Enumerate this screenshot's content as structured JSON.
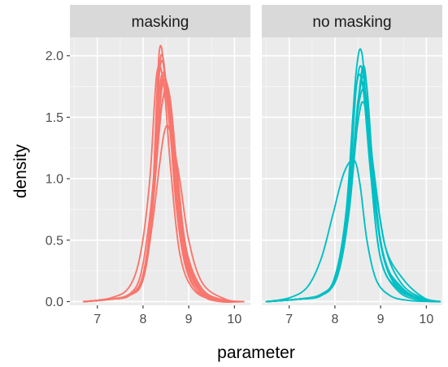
{
  "chart_data": {
    "type": "line",
    "chart_kind": "faceted density lines",
    "xlabel": "parameter",
    "ylabel": "density",
    "xlim": [
      6.4,
      10.35
    ],
    "ylim": [
      -0.03,
      2.15
    ],
    "x_ticks": [
      7,
      8,
      9,
      10
    ],
    "y_ticks": [
      0.0,
      0.5,
      1.0,
      1.5,
      2.0
    ],
    "y_tick_labels": [
      "0.0",
      "0.5",
      "1.0",
      "1.5",
      "2.0"
    ],
    "grid": true,
    "facets": [
      {
        "label": "masking",
        "color": "#F8766D",
        "series": [
          {
            "x": [
              6.7,
              7.3,
              7.7,
              7.95,
              8.15,
              8.35,
              8.55,
              8.75,
              8.95,
              9.3,
              9.8,
              10.2
            ],
            "y": [
              0.0,
              0.02,
              0.06,
              0.22,
              0.7,
              1.45,
              1.72,
              1.05,
              0.38,
              0.08,
              0.01,
              0.0
            ]
          },
          {
            "x": [
              6.7,
              7.3,
              7.7,
              7.95,
              8.15,
              8.3,
              8.45,
              8.6,
              8.8,
              9.1,
              9.6,
              10.2
            ],
            "y": [
              0.0,
              0.03,
              0.12,
              0.4,
              1.0,
              1.85,
              1.78,
              1.1,
              0.4,
              0.1,
              0.01,
              0.0
            ]
          },
          {
            "x": [
              6.7,
              7.3,
              7.7,
              8.0,
              8.2,
              8.38,
              8.55,
              8.72,
              8.92,
              9.2,
              9.6,
              10.2
            ],
            "y": [
              0.0,
              0.02,
              0.06,
              0.2,
              0.8,
              1.98,
              1.6,
              0.8,
              0.3,
              0.08,
              0.01,
              0.0
            ]
          },
          {
            "x": [
              6.7,
              7.3,
              7.7,
              8.0,
              8.2,
              8.35,
              8.5,
              8.7,
              8.95,
              9.3,
              9.7,
              10.2
            ],
            "y": [
              0.0,
              0.02,
              0.05,
              0.2,
              0.8,
              1.7,
              1.8,
              1.0,
              0.35,
              0.06,
              0.0,
              0.0
            ]
          },
          {
            "x": [
              6.7,
              7.3,
              7.7,
              8.0,
              8.2,
              8.42,
              8.58,
              8.75,
              8.95,
              9.3,
              9.8,
              10.2
            ],
            "y": [
              0.0,
              0.02,
              0.05,
              0.2,
              0.72,
              1.62,
              1.68,
              1.05,
              0.42,
              0.1,
              0.01,
              0.0
            ]
          },
          {
            "x": [
              6.7,
              7.3,
              7.7,
              8.0,
              8.2,
              8.45,
              8.6,
              8.8,
              9.0,
              9.3,
              9.8,
              10.2
            ],
            "y": [
              0.0,
              0.02,
              0.05,
              0.18,
              0.62,
              1.35,
              1.38,
              1.0,
              0.5,
              0.15,
              0.02,
              0.0
            ]
          },
          {
            "x": [
              6.7,
              7.3,
              7.7,
              8.0,
              8.2,
              8.37,
              8.52,
              8.7,
              8.9,
              9.2,
              9.7,
              10.2
            ],
            "y": [
              0.0,
              0.02,
              0.05,
              0.22,
              0.82,
              1.9,
              1.74,
              1.0,
              0.38,
              0.08,
              0.01,
              0.0
            ]
          },
          {
            "x": [
              6.7,
              7.3,
              7.7,
              8.0,
              8.2,
              8.4,
              8.55,
              8.72,
              8.92,
              9.25,
              9.7,
              10.2
            ],
            "y": [
              0.0,
              0.02,
              0.05,
              0.18,
              0.76,
              1.76,
              1.7,
              1.05,
              0.42,
              0.1,
              0.01,
              0.0
            ]
          },
          {
            "x": [
              6.7,
              7.3,
              7.7,
              8.0,
              8.2,
              8.36,
              8.52,
              8.72,
              8.94,
              9.25,
              9.7,
              10.2
            ],
            "y": [
              0.0,
              0.02,
              0.05,
              0.2,
              0.8,
              2.05,
              1.65,
              0.9,
              0.35,
              0.08,
              0.01,
              0.0
            ]
          },
          {
            "x": [
              6.7,
              7.3,
              7.7,
              8.0,
              8.2,
              8.4,
              8.56,
              8.74,
              8.95,
              9.3,
              9.75,
              10.2
            ],
            "y": [
              0.0,
              0.02,
              0.05,
              0.2,
              0.72,
              1.7,
              1.72,
              1.08,
              0.42,
              0.1,
              0.01,
              0.0
            ]
          }
        ]
      },
      {
        "label": "no masking",
        "color": "#00BFC4",
        "series": [
          {
            "x": [
              6.5,
              7.0,
              7.4,
              7.7,
              7.95,
              8.2,
              8.42,
              8.55,
              8.7,
              8.9,
              9.2,
              9.6,
              10.2
            ],
            "y": [
              0.0,
              0.03,
              0.12,
              0.35,
              0.7,
              1.05,
              1.15,
              0.95,
              0.5,
              0.18,
              0.05,
              0.01,
              0.0
            ]
          },
          {
            "x": [
              6.5,
              7.2,
              7.7,
              8.0,
              8.25,
              8.45,
              8.6,
              8.78,
              9.0,
              9.4,
              9.9,
              10.3
            ],
            "y": [
              0.0,
              0.02,
              0.06,
              0.2,
              0.72,
              1.7,
              1.78,
              1.05,
              0.35,
              0.08,
              0.01,
              0.0
            ]
          },
          {
            "x": [
              6.5,
              7.2,
              7.7,
              8.0,
              8.25,
              8.46,
              8.6,
              8.75,
              9.0,
              9.4,
              9.9,
              10.3
            ],
            "y": [
              0.0,
              0.02,
              0.06,
              0.2,
              0.75,
              1.85,
              2.0,
              1.2,
              0.35,
              0.1,
              0.02,
              0.0
            ]
          },
          {
            "x": [
              6.5,
              7.2,
              7.7,
              8.05,
              8.3,
              8.5,
              8.65,
              8.82,
              9.05,
              9.45,
              9.9,
              10.3
            ],
            "y": [
              0.0,
              0.02,
              0.05,
              0.22,
              0.78,
              1.6,
              1.9,
              1.1,
              0.38,
              0.12,
              0.02,
              0.0
            ]
          },
          {
            "x": [
              6.5,
              7.2,
              7.7,
              8.05,
              8.3,
              8.5,
              8.65,
              8.85,
              9.1,
              9.5,
              9.95,
              10.3
            ],
            "y": [
              0.0,
              0.02,
              0.05,
              0.2,
              0.7,
              1.45,
              1.6,
              1.05,
              0.45,
              0.18,
              0.03,
              0.0
            ]
          },
          {
            "x": [
              6.5,
              7.2,
              7.7,
              8.0,
              8.28,
              8.47,
              8.62,
              8.8,
              9.05,
              9.4,
              9.9,
              10.3
            ],
            "y": [
              0.0,
              0.02,
              0.05,
              0.2,
              0.75,
              1.75,
              1.85,
              1.05,
              0.38,
              0.1,
              0.02,
              0.0
            ]
          },
          {
            "x": [
              6.5,
              7.2,
              7.7,
              8.0,
              8.3,
              8.52,
              8.68,
              8.85,
              9.05,
              9.4,
              9.9,
              10.3
            ],
            "y": [
              0.0,
              0.02,
              0.05,
              0.18,
              0.72,
              1.65,
              1.8,
              1.0,
              0.4,
              0.12,
              0.02,
              0.0
            ]
          },
          {
            "x": [
              6.5,
              7.2,
              7.7,
              8.0,
              8.3,
              8.5,
              8.66,
              8.84,
              9.1,
              9.45,
              9.9,
              10.3
            ],
            "y": [
              0.0,
              0.02,
              0.05,
              0.2,
              0.78,
              1.55,
              1.7,
              1.1,
              0.45,
              0.15,
              0.03,
              0.0
            ]
          },
          {
            "x": [
              6.5,
              7.2,
              7.7,
              8.0,
              8.3,
              8.5,
              8.65,
              8.82,
              9.05,
              9.4,
              9.9,
              10.3
            ],
            "y": [
              0.0,
              0.02,
              0.05,
              0.2,
              0.76,
              1.62,
              1.74,
              1.04,
              0.4,
              0.12,
              0.02,
              0.0
            ]
          }
        ]
      }
    ]
  }
}
